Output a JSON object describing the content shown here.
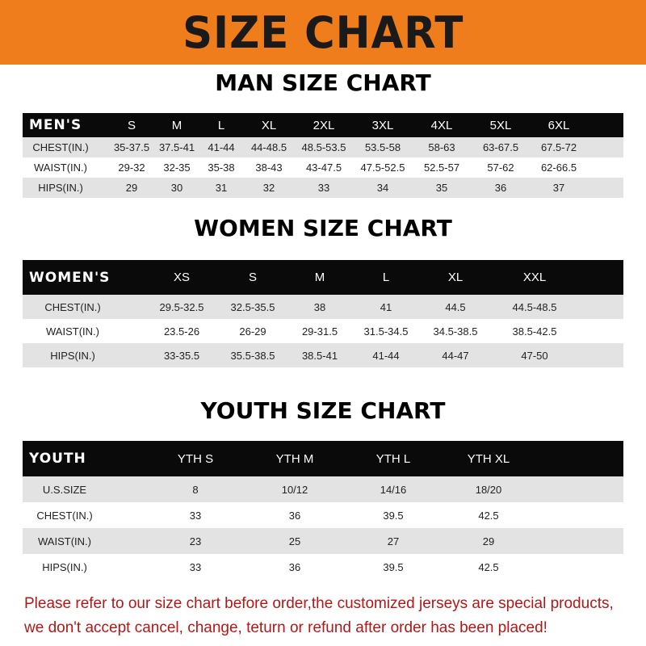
{
  "banner_title": "SIZE CHART",
  "men": {
    "title": "MAN SIZE CHART",
    "header": [
      "MEN'S",
      "S",
      "M",
      "L",
      "XL",
      "2XL",
      "3XL",
      "4XL",
      "5XL",
      "6XL"
    ],
    "rows": [
      [
        "CHEST(IN.)",
        "35-37.5",
        "37.5-41",
        "41-44",
        "44-48.5",
        "48.5-53.5",
        "53.5-58",
        "58-63",
        "63-67.5",
        "67.5-72"
      ],
      [
        "WAIST(IN.)",
        "29-32",
        "32-35",
        "35-38",
        "38-43",
        "43-47.5",
        "47.5-52.5",
        "52.5-57",
        "57-62",
        "62-66.5"
      ],
      [
        "HIPS(IN.)",
        "29",
        "30",
        "31",
        "32",
        "33",
        "34",
        "35",
        "36",
        "37"
      ]
    ]
  },
  "women": {
    "title": "WOMEN SIZE CHART",
    "header": [
      "WOMEN'S",
      "XS",
      "S",
      "M",
      "L",
      "XL",
      "XXL"
    ],
    "rows": [
      [
        "CHEST(IN.)",
        "29.5-32.5",
        "32.5-35.5",
        "38",
        "41",
        "44.5",
        "44.5-48.5"
      ],
      [
        "WAIST(IN.)",
        "23.5-26",
        "26-29",
        "29-31.5",
        "31.5-34.5",
        "34.5-38.5",
        "38.5-42.5"
      ],
      [
        "HIPS(IN.)",
        "33-35.5",
        "35.5-38.5",
        "38.5-41",
        "41-44",
        "44-47",
        "47-50"
      ]
    ]
  },
  "youth": {
    "title": "YOUTH SIZE CHART",
    "header": [
      "YOUTH",
      "YTH S",
      "YTH M",
      "YTH L",
      "YTH XL"
    ],
    "rows": [
      [
        "U.S.SIZE",
        "8",
        "10/12",
        "14/16",
        "18/20"
      ],
      [
        "CHEST(IN.)",
        "33",
        "36",
        "39.5",
        "42.5"
      ],
      [
        "WAIST(IN.)",
        "23",
        "25",
        "27",
        "29"
      ],
      [
        "HIPS(IN.)",
        "33",
        "36",
        "39.5",
        "42.5"
      ]
    ]
  },
  "footer": {
    "line1": "Please refer to our size chart before order,the customized jerseys are special products,",
    "line2": "we don't accept cancel, change, teturn or refund after order has been placed!"
  },
  "colors": {
    "banner": "#f07d1c",
    "header_row": "#0a0a0a",
    "alt_row": "#e3e3e3",
    "footer_text": "#b01818"
  }
}
